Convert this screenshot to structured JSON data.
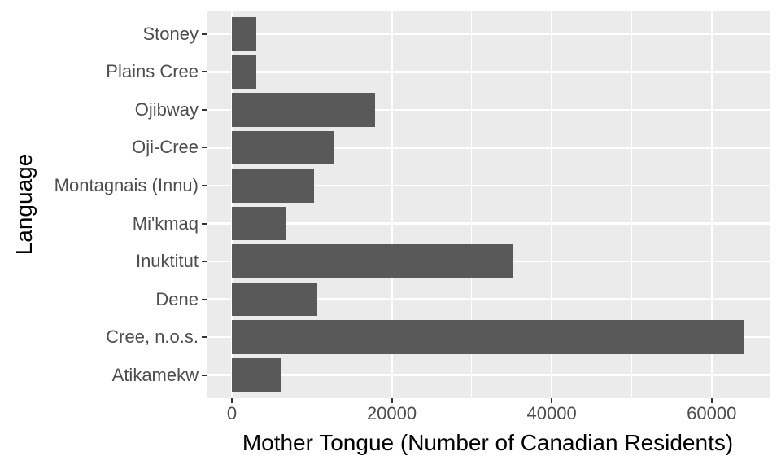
{
  "chart_data": {
    "type": "bar",
    "orientation": "horizontal",
    "title": "",
    "xlabel": "Mother Tongue (Number of Canadian Residents)",
    "ylabel": "Language",
    "categories": [
      "Stoney",
      "Plains Cree",
      "Ojibway",
      "Oji-Cree",
      "Montagnais (Innu)",
      "Mi'kmaq",
      "Inuktitut",
      "Dene",
      "Cree, n.o.s.",
      "Atikamekw"
    ],
    "values": [
      3025,
      3065,
      17885,
      12855,
      10230,
      6690,
      35215,
      10700,
      64050,
      6150
    ],
    "x_major_ticks": [
      0,
      20000,
      40000,
      60000
    ],
    "x_tick_labels": [
      "0",
      "20000",
      "40000",
      "60000"
    ],
    "x_minor_ticks": [
      10000,
      30000,
      50000
    ],
    "xlim": [
      -3200,
      67200
    ],
    "grid": "major-and-minor, white on gray panel",
    "legend": false,
    "colors": {
      "bar": "#595959",
      "panel_bg": "#EBEBEB",
      "grid": "#FFFFFF",
      "tick_text": "#4D4D4D",
      "axis_title_text": "#000000",
      "tick_mark": "#333333",
      "background": "#FFFFFF"
    }
  }
}
